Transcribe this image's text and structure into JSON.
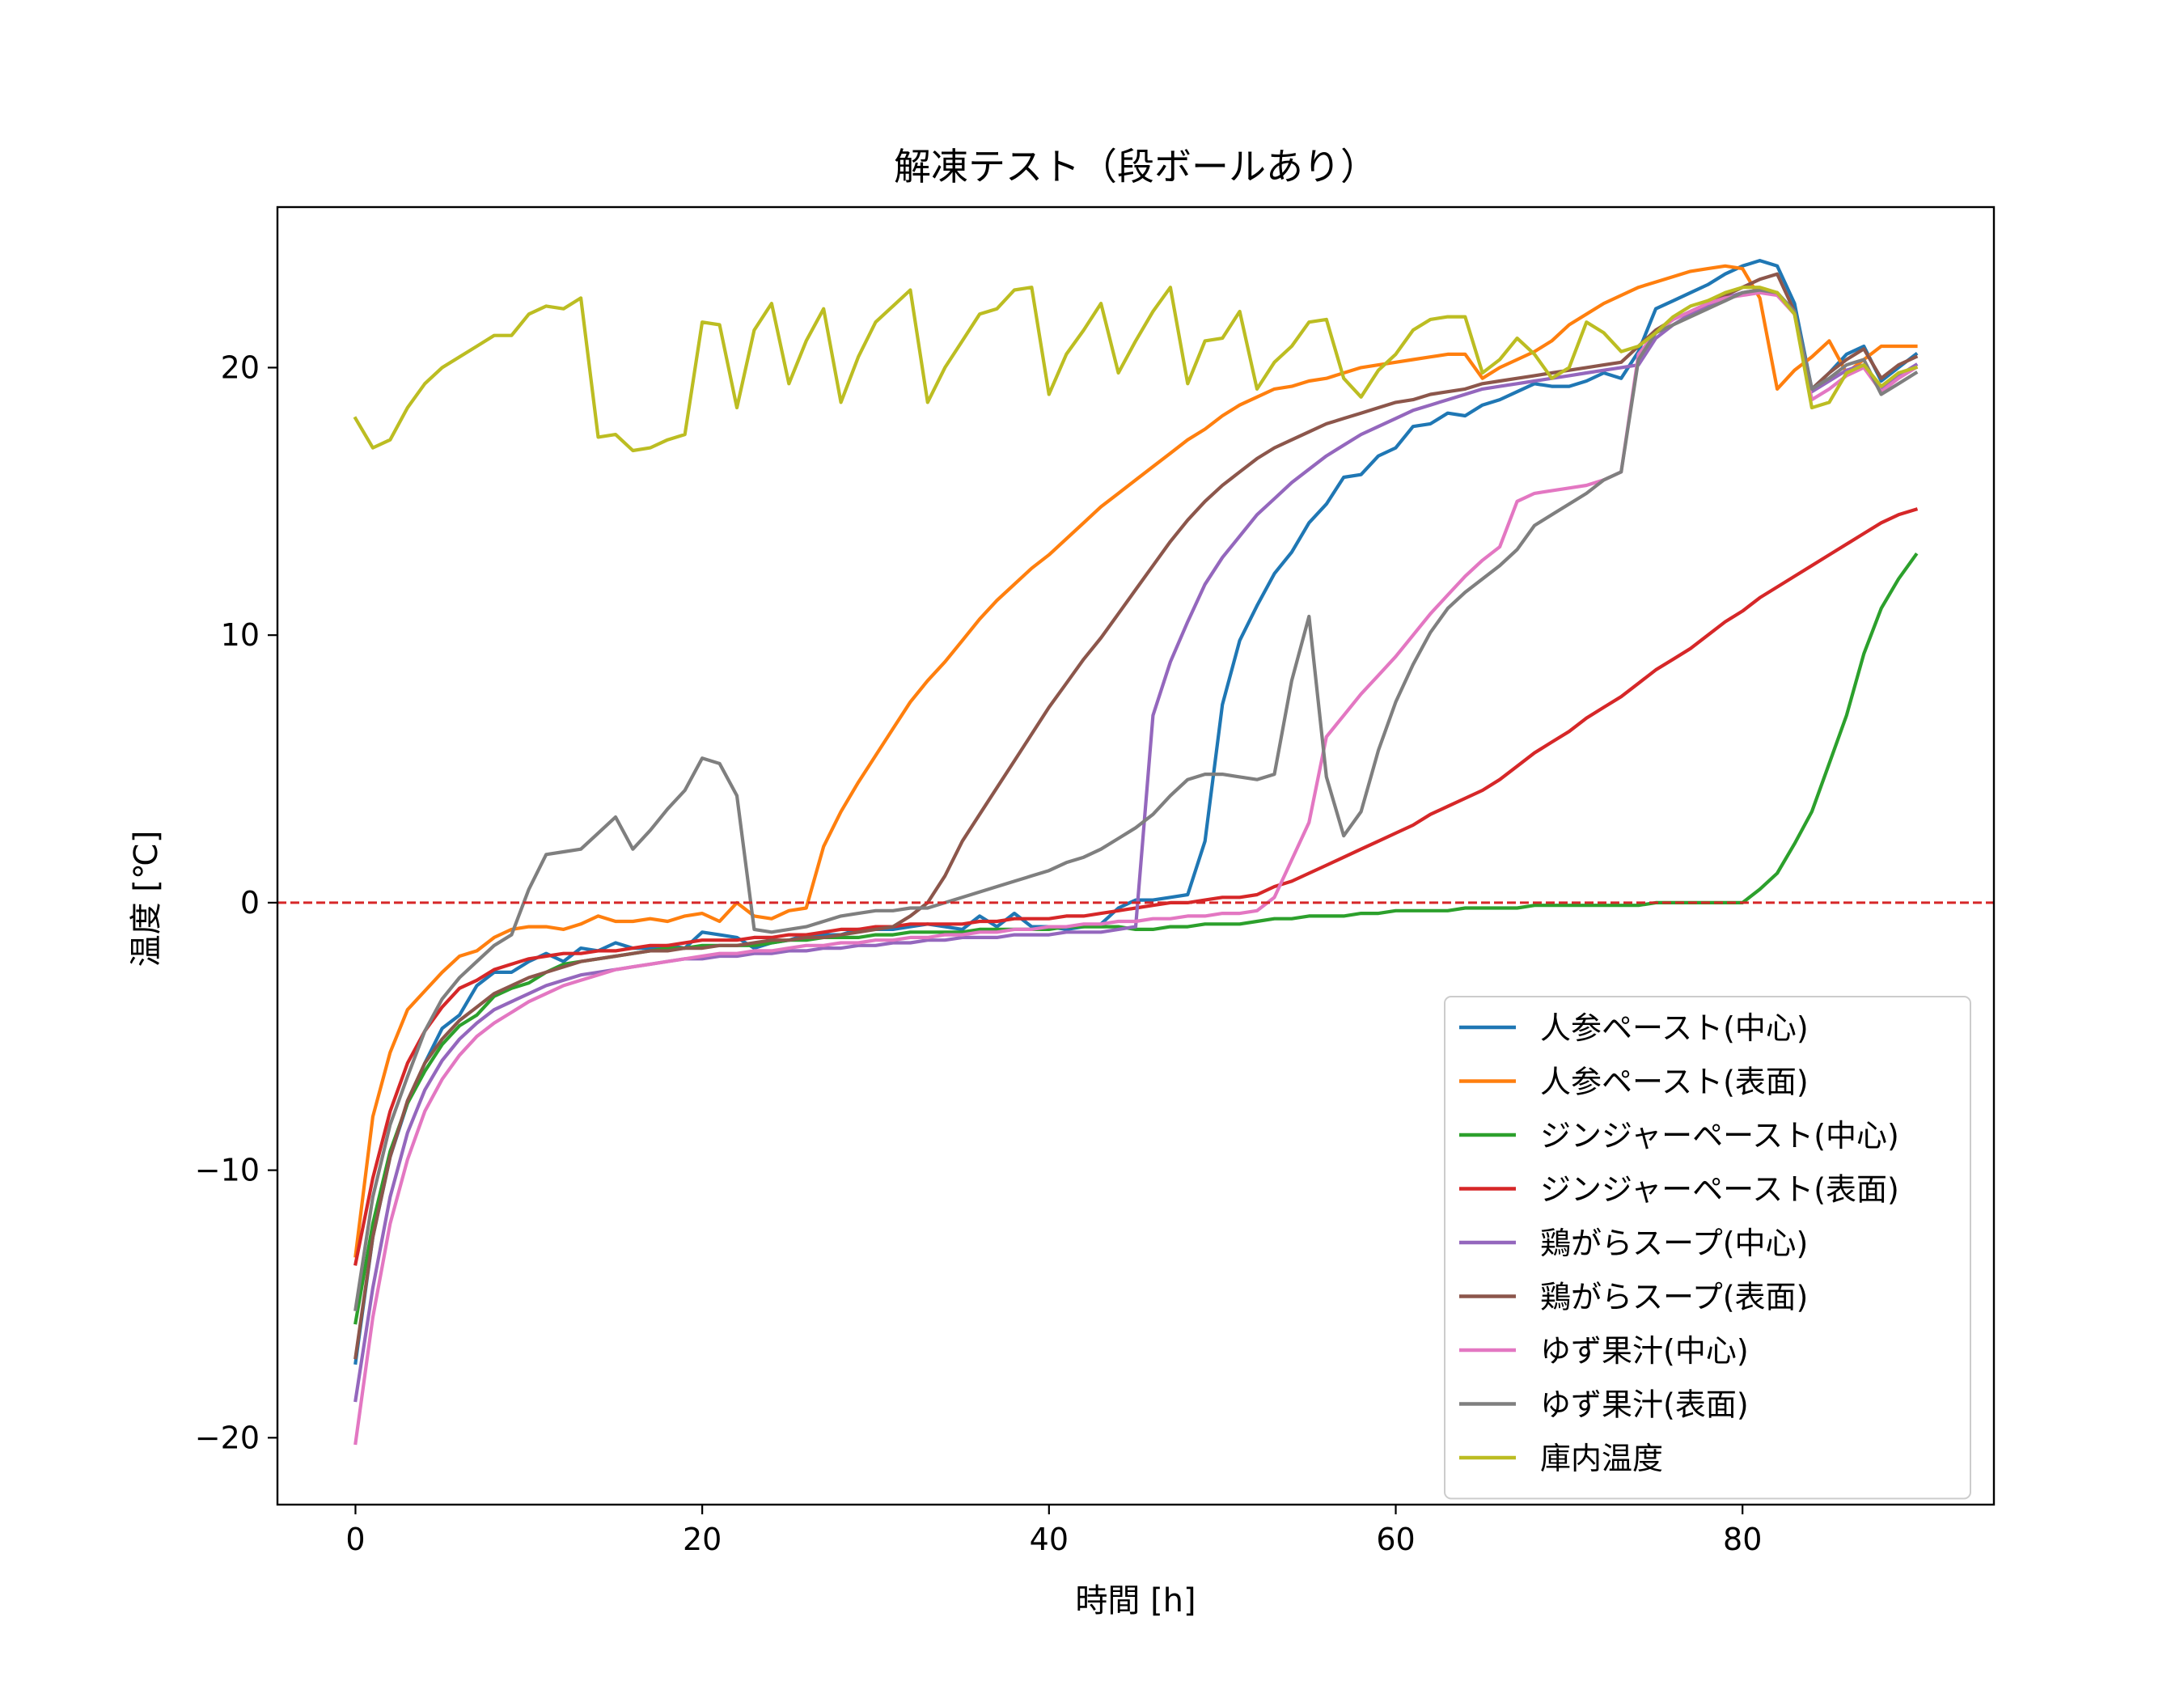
{
  "chart_data": {
    "type": "line",
    "title": "解凍テスト（段ボールあり）",
    "xlabel": "時間 [h]",
    "ylabel": "温度 [℃]",
    "xlim": [
      -4.5,
      94.5
    ],
    "ylim": [
      -22.5,
      26.0
    ],
    "xticks": [
      0,
      20,
      40,
      60,
      80
    ],
    "xtick_labels": [
      "0",
      "20",
      "40",
      "60",
      "80"
    ],
    "yticks": [
      -20,
      -10,
      0,
      10,
      20
    ],
    "ytick_labels": [
      "−20",
      "−10",
      "0",
      "10",
      "20"
    ],
    "grid": false,
    "legend_position": "lower-right",
    "reference_line": {
      "y": 0,
      "style": "dashed",
      "color": "#d62728"
    },
    "x": [
      0,
      1,
      2,
      3,
      4,
      5,
      6,
      7,
      8,
      9,
      10,
      11,
      12,
      13,
      14,
      15,
      16,
      17,
      18,
      19,
      20,
      21,
      22,
      23,
      24,
      25,
      26,
      27,
      28,
      29,
      30,
      31,
      32,
      33,
      34,
      35,
      36,
      37,
      38,
      39,
      40,
      41,
      42,
      43,
      44,
      45,
      46,
      47,
      48,
      49,
      50,
      51,
      52,
      53,
      54,
      55,
      56,
      57,
      58,
      59,
      60,
      61,
      62,
      63,
      64,
      65,
      66,
      67,
      68,
      69,
      70,
      71,
      72,
      73,
      74,
      75,
      76,
      77,
      78,
      79,
      80,
      81,
      82,
      83,
      84,
      85,
      86,
      87,
      88,
      89,
      90
    ],
    "series": [
      {
        "name": "人参ペースト(中心)",
        "color": "#1f77b4",
        "values": [
          -17.2,
          -12.5,
          -9.5,
          -7.5,
          -6.0,
          -4.7,
          -4.2,
          -3.1,
          -2.6,
          -2.6,
          -2.2,
          -1.9,
          -2.2,
          -1.7,
          -1.8,
          -1.5,
          -1.7,
          -1.7,
          -1.6,
          -1.7,
          -1.1,
          -1.2,
          -1.3,
          -1.7,
          -1.5,
          -1.4,
          -1.2,
          -1.2,
          -1.2,
          -1.0,
          -1.0,
          -1.0,
          -0.9,
          -0.8,
          -0.9,
          -1.0,
          -0.5,
          -0.9,
          -0.4,
          -0.9,
          -0.9,
          -1.0,
          -0.9,
          -0.8,
          -0.2,
          0.1,
          0.1,
          0.2,
          0.3,
          2.3,
          7.4,
          9.8,
          11.1,
          12.3,
          13.1,
          14.2,
          14.9,
          15.9,
          16.0,
          16.7,
          17.0,
          17.8,
          17.9,
          18.3,
          18.2,
          18.6,
          18.8,
          19.1,
          19.4,
          19.3,
          19.3,
          19.5,
          19.8,
          19.6,
          20.6,
          22.2,
          22.5,
          22.8,
          23.1,
          23.5,
          23.8,
          24.0,
          23.8,
          22.4,
          19.2,
          19.8,
          20.5,
          20.8,
          19.5,
          20.0,
          20.5
        ]
      },
      {
        "name": "人参ペースト(表面)",
        "color": "#ff7f0e",
        "values": [
          -13.2,
          -8.0,
          -5.6,
          -4.0,
          -3.3,
          -2.6,
          -2.0,
          -1.8,
          -1.3,
          -1.0,
          -0.9,
          -0.9,
          -1.0,
          -0.8,
          -0.5,
          -0.7,
          -0.7,
          -0.6,
          -0.7,
          -0.5,
          -0.4,
          -0.7,
          0.0,
          -0.5,
          -0.6,
          -0.3,
          -0.2,
          2.1,
          3.4,
          4.5,
          5.5,
          6.5,
          7.5,
          8.3,
          9.0,
          9.8,
          10.6,
          11.3,
          11.9,
          12.5,
          13.0,
          13.6,
          14.2,
          14.8,
          15.3,
          15.8,
          16.3,
          16.8,
          17.3,
          17.7,
          18.2,
          18.6,
          18.9,
          19.2,
          19.3,
          19.5,
          19.6,
          19.8,
          20.0,
          20.1,
          20.2,
          20.3,
          20.4,
          20.5,
          20.5,
          19.6,
          20.0,
          20.3,
          20.6,
          21.0,
          21.6,
          22.0,
          22.4,
          22.7,
          23.0,
          23.2,
          23.4,
          23.6,
          23.7,
          23.8,
          23.7,
          22.6,
          19.2,
          19.9,
          20.4,
          21.0,
          19.8,
          20.3,
          20.8,
          20.8,
          20.8
        ]
      },
      {
        "name": "ジンジャーペースト(中心)",
        "color": "#2ca02c",
        "values": [
          -15.7,
          -12.0,
          -9.3,
          -7.5,
          -6.3,
          -5.3,
          -4.6,
          -4.2,
          -3.5,
          -3.2,
          -3.0,
          -2.6,
          -2.3,
          -2.2,
          -2.1,
          -2.0,
          -1.9,
          -1.8,
          -1.7,
          -1.7,
          -1.6,
          -1.6,
          -1.6,
          -1.6,
          -1.5,
          -1.4,
          -1.4,
          -1.3,
          -1.3,
          -1.3,
          -1.2,
          -1.2,
          -1.1,
          -1.1,
          -1.1,
          -1.1,
          -1.0,
          -1.0,
          -1.0,
          -1.0,
          -1.0,
          -0.9,
          -0.9,
          -0.9,
          -0.9,
          -1.0,
          -1.0,
          -0.9,
          -0.9,
          -0.8,
          -0.8,
          -0.8,
          -0.7,
          -0.6,
          -0.6,
          -0.5,
          -0.5,
          -0.5,
          -0.4,
          -0.4,
          -0.3,
          -0.3,
          -0.3,
          -0.3,
          -0.2,
          -0.2,
          -0.2,
          -0.2,
          -0.1,
          -0.1,
          -0.1,
          -0.1,
          -0.1,
          -0.1,
          -0.1,
          0.0,
          0.0,
          0.0,
          0.0,
          0.0,
          0.0,
          0.5,
          1.1,
          2.2,
          3.4,
          5.2,
          7.0,
          9.3,
          11.0,
          12.1,
          13.0
        ]
      },
      {
        "name": "ジンジャーペースト(表面)",
        "color": "#d62728",
        "values": [
          -13.5,
          -10.3,
          -7.8,
          -6.0,
          -4.8,
          -3.9,
          -3.2,
          -2.9,
          -2.5,
          -2.3,
          -2.1,
          -2.0,
          -1.9,
          -1.9,
          -1.8,
          -1.8,
          -1.7,
          -1.6,
          -1.6,
          -1.5,
          -1.4,
          -1.4,
          -1.4,
          -1.3,
          -1.3,
          -1.2,
          -1.2,
          -1.1,
          -1.0,
          -1.0,
          -0.9,
          -0.9,
          -0.8,
          -0.8,
          -0.8,
          -0.8,
          -0.7,
          -0.7,
          -0.6,
          -0.6,
          -0.6,
          -0.5,
          -0.5,
          -0.4,
          -0.3,
          -0.2,
          -0.1,
          0.0,
          0.0,
          0.1,
          0.2,
          0.2,
          0.3,
          0.6,
          0.8,
          1.1,
          1.4,
          1.7,
          2.0,
          2.3,
          2.6,
          2.9,
          3.3,
          3.6,
          3.9,
          4.2,
          4.6,
          5.1,
          5.6,
          6.0,
          6.4,
          6.9,
          7.3,
          7.7,
          8.2,
          8.7,
          9.1,
          9.5,
          10.0,
          10.5,
          10.9,
          11.4,
          11.8,
          12.2,
          12.6,
          13.0,
          13.4,
          13.8,
          14.2,
          14.5,
          14.7
        ]
      },
      {
        "name": "鶏がらスープ(中心)",
        "color": "#9467bd",
        "values": [
          -18.6,
          -14.4,
          -11.0,
          -8.6,
          -7.0,
          -5.9,
          -5.1,
          -4.5,
          -4.0,
          -3.7,
          -3.4,
          -3.1,
          -2.9,
          -2.7,
          -2.6,
          -2.5,
          -2.4,
          -2.3,
          -2.2,
          -2.1,
          -2.1,
          -2.0,
          -2.0,
          -1.9,
          -1.9,
          -1.8,
          -1.8,
          -1.7,
          -1.7,
          -1.6,
          -1.6,
          -1.5,
          -1.5,
          -1.4,
          -1.4,
          -1.3,
          -1.3,
          -1.3,
          -1.2,
          -1.2,
          -1.2,
          -1.1,
          -1.1,
          -1.1,
          -1.0,
          -0.9,
          7.0,
          9.0,
          10.5,
          11.9,
          12.9,
          13.7,
          14.5,
          15.1,
          15.7,
          16.2,
          16.7,
          17.1,
          17.5,
          17.8,
          18.1,
          18.4,
          18.6,
          18.8,
          19.0,
          19.2,
          19.3,
          19.4,
          19.5,
          19.6,
          19.7,
          19.8,
          19.9,
          20.0,
          20.1,
          21.1,
          21.6,
          22.0,
          22.3,
          22.6,
          22.8,
          22.9,
          22.8,
          22.0,
          19.1,
          19.5,
          19.9,
          20.1,
          19.2,
          19.7,
          20.1
        ]
      },
      {
        "name": "鶏がらスープ(表面)",
        "color": "#8c564b",
        "values": [
          -17.0,
          -12.5,
          -9.5,
          -7.4,
          -6.0,
          -5.1,
          -4.4,
          -3.9,
          -3.4,
          -3.1,
          -2.8,
          -2.6,
          -2.4,
          -2.2,
          -2.1,
          -2.0,
          -1.9,
          -1.8,
          -1.8,
          -1.7,
          -1.7,
          -1.6,
          -1.6,
          -1.5,
          -1.4,
          -1.4,
          -1.3,
          -1.3,
          -1.2,
          -1.1,
          -1.0,
          -0.9,
          -0.5,
          0.0,
          1.0,
          2.3,
          3.3,
          4.3,
          5.3,
          6.3,
          7.3,
          8.2,
          9.1,
          9.9,
          10.8,
          11.7,
          12.6,
          13.5,
          14.3,
          15.0,
          15.6,
          16.1,
          16.6,
          17.0,
          17.3,
          17.6,
          17.9,
          18.1,
          18.3,
          18.5,
          18.7,
          18.8,
          19.0,
          19.1,
          19.2,
          19.4,
          19.5,
          19.6,
          19.7,
          19.8,
          19.9,
          20.0,
          20.1,
          20.2,
          20.8,
          21.4,
          21.8,
          22.1,
          22.4,
          22.7,
          23.0,
          23.3,
          23.5,
          22.1,
          19.2,
          19.8,
          20.3,
          20.7,
          19.6,
          20.1,
          20.4
        ]
      },
      {
        "name": "ゆず果汁(中心)",
        "color": "#e377c2",
        "values": [
          -20.2,
          -15.5,
          -12.0,
          -9.6,
          -7.8,
          -6.6,
          -5.7,
          -5.0,
          -4.5,
          -4.1,
          -3.7,
          -3.4,
          -3.1,
          -2.9,
          -2.7,
          -2.5,
          -2.4,
          -2.3,
          -2.2,
          -2.1,
          -2.0,
          -1.9,
          -1.9,
          -1.8,
          -1.8,
          -1.7,
          -1.6,
          -1.6,
          -1.5,
          -1.5,
          -1.4,
          -1.4,
          -1.3,
          -1.3,
          -1.2,
          -1.2,
          -1.1,
          -1.1,
          -1.0,
          -1.0,
          -0.9,
          -0.9,
          -0.8,
          -0.8,
          -0.7,
          -0.7,
          -0.6,
          -0.6,
          -0.5,
          -0.5,
          -0.4,
          -0.4,
          -0.3,
          0.2,
          1.6,
          3.0,
          6.2,
          7.0,
          7.8,
          8.5,
          9.2,
          10.0,
          10.8,
          11.5,
          12.2,
          12.8,
          13.3,
          15.0,
          15.3,
          15.4,
          15.5,
          15.6,
          15.8,
          16.1,
          20.5,
          21.3,
          21.8,
          22.1,
          22.4,
          22.6,
          22.7,
          22.8,
          22.7,
          22.0,
          18.8,
          19.2,
          19.7,
          20.0,
          19.1,
          19.6,
          20.0
        ]
      },
      {
        "name": "ゆず果汁(表面)",
        "color": "#7f7f7f",
        "values": [
          -15.2,
          -11.0,
          -8.3,
          -6.5,
          -4.8,
          -3.6,
          -2.8,
          -2.2,
          -1.6,
          -1.2,
          0.5,
          1.8,
          1.9,
          2.0,
          2.6,
          3.2,
          2.0,
          2.7,
          3.5,
          4.2,
          5.4,
          5.2,
          4.0,
          -1.0,
          -1.1,
          -1.0,
          -0.9,
          -0.7,
          -0.5,
          -0.4,
          -0.3,
          -0.3,
          -0.2,
          -0.2,
          0.0,
          0.2,
          0.4,
          0.6,
          0.8,
          1.0,
          1.2,
          1.5,
          1.7,
          2.0,
          2.4,
          2.8,
          3.3,
          4.0,
          4.6,
          4.8,
          4.8,
          4.7,
          4.6,
          4.8,
          8.3,
          10.7,
          4.7,
          2.5,
          3.4,
          5.7,
          7.5,
          8.9,
          10.1,
          11.0,
          11.6,
          12.1,
          12.6,
          13.2,
          14.1,
          14.5,
          14.9,
          15.3,
          15.8,
          16.1,
          20.3,
          21.3,
          21.6,
          21.9,
          22.2,
          22.5,
          22.8,
          22.9,
          22.8,
          22.1,
          19.2,
          19.6,
          20.1,
          20.3,
          19.0,
          19.4,
          19.8
        ]
      },
      {
        "name": "庫内温度",
        "color": "#bcbd22",
        "values": [
          18.1,
          17.0,
          17.3,
          18.5,
          19.4,
          20.0,
          20.4,
          20.8,
          21.2,
          21.2,
          22.0,
          22.3,
          22.2,
          22.6,
          17.4,
          17.5,
          16.9,
          17.0,
          17.3,
          17.5,
          21.7,
          21.6,
          18.5,
          21.4,
          22.4,
          19.4,
          21.0,
          22.2,
          18.7,
          20.4,
          21.7,
          22.3,
          22.9,
          18.7,
          20.0,
          21.0,
          22.0,
          22.2,
          22.9,
          23.0,
          19.0,
          20.5,
          21.4,
          22.4,
          19.8,
          21.0,
          22.1,
          23.0,
          19.4,
          21.0,
          21.1,
          22.1,
          19.2,
          20.2,
          20.8,
          21.7,
          21.8,
          19.6,
          18.9,
          19.9,
          20.5,
          21.4,
          21.8,
          21.9,
          21.9,
          19.8,
          20.3,
          21.1,
          20.5,
          19.6,
          20.0,
          21.7,
          21.3,
          20.6,
          20.8,
          21.3,
          21.9,
          22.3,
          22.5,
          22.8,
          23.0,
          23.0,
          22.8,
          22.0,
          18.5,
          18.7,
          19.8,
          20.1,
          19.3,
          19.8,
          20.0
        ]
      }
    ]
  }
}
